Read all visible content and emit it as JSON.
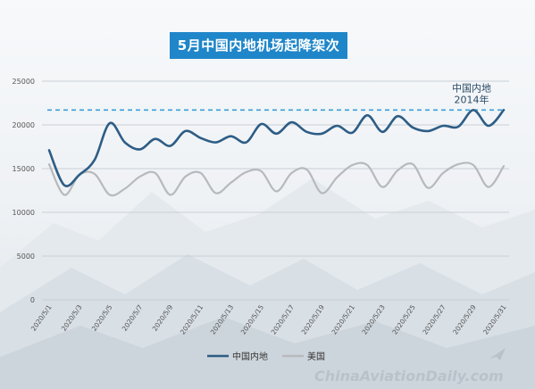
{
  "title": "5月中国内地机场起降架次",
  "watermark": "ChinaAviationDaily.com",
  "colors": {
    "series_cn": "#2d5d86",
    "series_us": "#b7b9bd",
    "reference": "#3a9fd9",
    "title_bg": "#1f86c9"
  },
  "chart_data": {
    "type": "line",
    "title": "5月中国内地机场起降架次",
    "xlabel": "",
    "ylabel": "",
    "ylim": [
      0,
      25000
    ],
    "yticks": [
      "0",
      "5000",
      "10000",
      "15000",
      "20000",
      "25000"
    ],
    "ytick_values": [
      0,
      5000,
      10000,
      15000,
      20000,
      25000
    ],
    "x": [
      "2020/5/1",
      "2020/5/2",
      "2020/5/3",
      "2020/5/4",
      "2020/5/5",
      "2020/5/6",
      "2020/5/7",
      "2020/5/8",
      "2020/5/9",
      "2020/5/10",
      "2020/5/11",
      "2020/5/12",
      "2020/5/13",
      "2020/5/14",
      "2020/5/15",
      "2020/5/16",
      "2020/5/17",
      "2020/5/18",
      "2020/5/19",
      "2020/5/20",
      "2020/5/21",
      "2020/5/22",
      "2020/5/23",
      "2020/5/24",
      "2020/5/25",
      "2020/5/26",
      "2020/5/27",
      "2020/5/28",
      "2020/5/29",
      "2020/5/30",
      "2020/5/31"
    ],
    "xticks": [
      "2020/5/1",
      "2020/5/3",
      "2020/5/5",
      "2020/5/7",
      "2020/5/9",
      "2020/5/11",
      "2020/5/13",
      "2020/5/15",
      "2020/5/17",
      "2020/5/19",
      "2020/5/21",
      "2020/5/23",
      "2020/5/25",
      "2020/5/27",
      "2020/5/29",
      "2020/5/31"
    ],
    "series": [
      {
        "name": "中国内地",
        "values": [
          17100,
          13100,
          14300,
          16000,
          20200,
          18000,
          17200,
          18400,
          17600,
          19300,
          18500,
          18000,
          18700,
          18000,
          20100,
          19000,
          20300,
          19200,
          19000,
          19900,
          19100,
          21100,
          19200,
          21000,
          19700,
          19300,
          19900,
          19800,
          21700,
          19900,
          21700
        ]
      },
      {
        "name": "美国",
        "values": [
          15500,
          12000,
          14300,
          14400,
          12000,
          12700,
          14100,
          14500,
          12000,
          14100,
          14500,
          12200,
          13400,
          14600,
          14700,
          12400,
          14500,
          14900,
          12200,
          14000,
          15400,
          15400,
          12900,
          14800,
          15500,
          12800,
          14500,
          15500,
          15400,
          12900,
          15300
        ]
      }
    ],
    "reference_line": {
      "value": 21700,
      "label_line1": "中国内地",
      "label_line2": "2014年"
    },
    "grid": true,
    "legend_position": "bottom-center"
  }
}
